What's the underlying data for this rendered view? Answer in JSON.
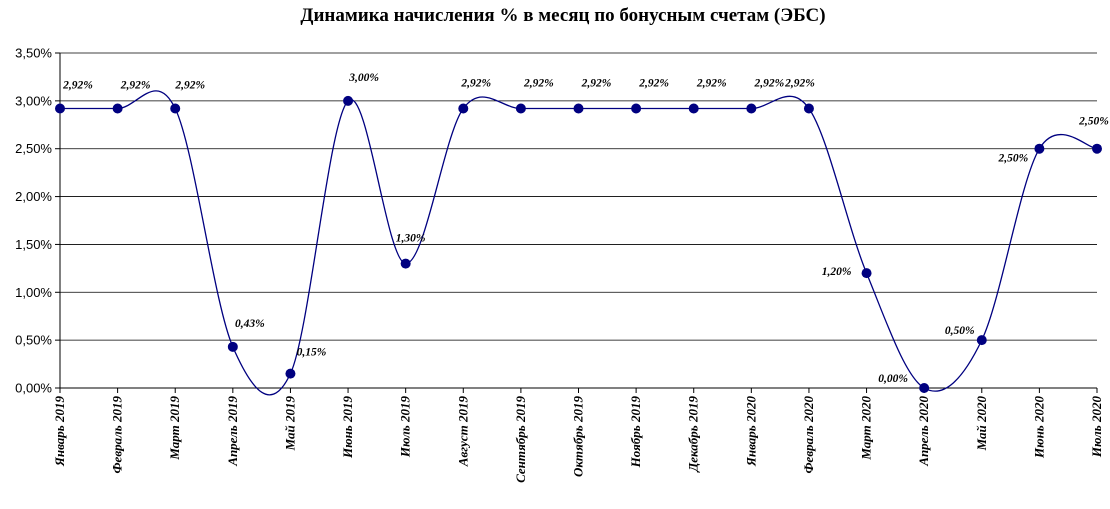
{
  "chart_data": {
    "type": "line",
    "title": "Динамика начисления % в месяц по бонусным счетам (ЭБС)",
    "xlabel": "",
    "ylabel": "",
    "ylim": [
      0,
      3.5
    ],
    "ytick_labels": [
      "0,00%",
      "0,50%",
      "1,00%",
      "1,50%",
      "2,00%",
      "2,50%",
      "3,00%",
      "3,50%"
    ],
    "grid": "horizontal",
    "legend": "none",
    "line_color": "#000080",
    "marker_color": "#000080",
    "smooth": true,
    "categories": [
      "Январь 2019",
      "Февраль 2019",
      "Март 2019",
      "Апрель 2019",
      "Май 2019",
      "Июнь 2019",
      "Июль 2019",
      "Август 2019",
      "Сентябрь 2019",
      "Октябрь 2019",
      "Ноябрь 2019",
      "Декабрь 2019",
      "Январь 2020",
      "Февраль 2020",
      "Март 2020",
      "Апрель 2020",
      "Май 2020",
      "Июнь 2020",
      "Июль 2020"
    ],
    "series": [
      {
        "values": [
          2.92,
          2.92,
          2.92,
          0.43,
          0.15,
          3.0,
          1.3,
          2.92,
          2.92,
          2.92,
          2.92,
          2.92,
          2.92,
          2.92,
          1.2,
          0.0,
          0.5,
          2.5,
          2.5
        ],
        "data_labels": [
          "2,92%",
          "2,92%",
          "2,92%",
          "0,43%",
          "0,15%",
          "3,00%",
          "1,30%",
          "2,92%",
          "2,92%",
          "2,92%",
          "2,92%",
          "2,92%",
          "2,92%",
          "2,92%",
          "1,20%",
          "0,00%",
          "0,50%",
          "2,50%",
          "2,50%"
        ]
      }
    ]
  }
}
